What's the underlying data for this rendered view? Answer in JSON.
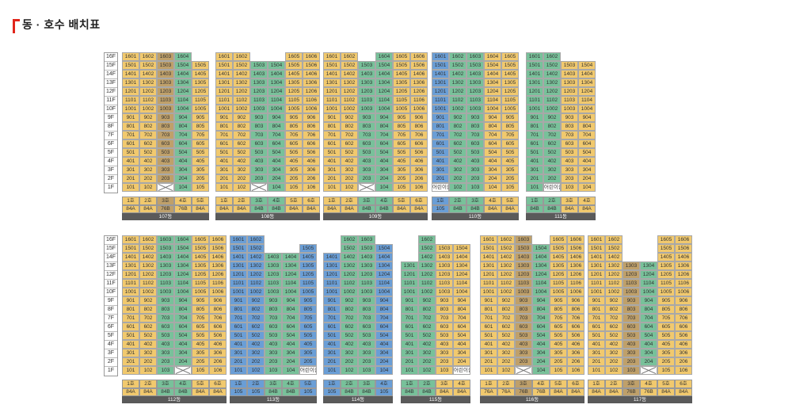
{
  "header": {
    "title": "동 · 호수 배치표"
  },
  "floors": [
    "16F",
    "15F",
    "14F",
    "13F",
    "12F",
    "11F",
    "10F",
    "9F",
    "8F",
    "7F",
    "6F",
    "5F",
    "4F",
    "3F",
    "2F",
    "1F"
  ],
  "colors": {
    "yellow": "#f1c96e",
    "green": "#78c19a",
    "blue": "#6a9ed6",
    "khaki": "#bfa06a",
    "legend_bar": "#5a5a5a"
  },
  "special_cells": {
    "note_label": "어린이집",
    "note_label_alt": "어린이집"
  },
  "buildings": [
    {
      "name": "107동",
      "lines": [
        {
          "line": "1호",
          "type": "84A",
          "color": "y"
        },
        {
          "line": "2호",
          "type": "84A",
          "color": "y"
        },
        {
          "line": "3호",
          "type": "76B",
          "color": "k"
        },
        {
          "line": "4호",
          "type": "76B",
          "color": "y"
        },
        {
          "line": "5호",
          "type": "84A",
          "color": "y"
        }
      ]
    },
    {
      "name": "108동",
      "lines": [
        {
          "line": "1호",
          "type": "84A",
          "color": "y"
        },
        {
          "line": "2호",
          "type": "84A",
          "color": "y"
        },
        {
          "line": "3호",
          "type": "84B",
          "color": "g"
        },
        {
          "line": "4호",
          "type": "84B",
          "color": "g"
        },
        {
          "line": "5호",
          "type": "84A",
          "color": "y"
        },
        {
          "line": "6호",
          "type": "84A",
          "color": "y"
        }
      ]
    },
    {
      "name": "109동",
      "lines": [
        {
          "line": "1호",
          "type": "84A",
          "color": "y"
        },
        {
          "line": "2호",
          "type": "84A",
          "color": "y"
        },
        {
          "line": "3호",
          "type": "84B",
          "color": "g"
        },
        {
          "line": "4호",
          "type": "84B",
          "color": "g"
        },
        {
          "line": "5호",
          "type": "84A",
          "color": "y"
        },
        {
          "line": "6호",
          "type": "84A",
          "color": "y"
        }
      ]
    },
    {
      "name": "110동",
      "lines": [
        {
          "line": "1호",
          "type": "105",
          "color": "b"
        },
        {
          "line": "2호",
          "type": "84B",
          "color": "g"
        },
        {
          "line": "3호",
          "type": "84B",
          "color": "g"
        },
        {
          "line": "4호",
          "type": "84A",
          "color": "y"
        },
        {
          "line": "5호",
          "type": "84A",
          "color": "y"
        }
      ]
    },
    {
      "name": "111동",
      "lines": [
        {
          "line": "1호",
          "type": "84B",
          "color": "g"
        },
        {
          "line": "2호",
          "type": "84B",
          "color": "g"
        },
        {
          "line": "3호",
          "type": "84A",
          "color": "y"
        },
        {
          "line": "4호",
          "type": "84A",
          "color": "y"
        }
      ]
    },
    {
      "name": "112동",
      "lines": [
        {
          "line": "1호",
          "type": "84A",
          "color": "y"
        },
        {
          "line": "2호",
          "type": "84A",
          "color": "y"
        },
        {
          "line": "3호",
          "type": "84B",
          "color": "g"
        },
        {
          "line": "4호",
          "type": "84B",
          "color": "g"
        },
        {
          "line": "5호",
          "type": "84A",
          "color": "y"
        },
        {
          "line": "6호",
          "type": "84A",
          "color": "y"
        }
      ]
    },
    {
      "name": "113동",
      "lines": [
        {
          "line": "1호",
          "type": "105",
          "color": "b"
        },
        {
          "line": "2호",
          "type": "105",
          "color": "b"
        },
        {
          "line": "3호",
          "type": "84B",
          "color": "g"
        },
        {
          "line": "4호",
          "type": "84B",
          "color": "g"
        },
        {
          "line": "5호",
          "type": "105",
          "color": "b"
        }
      ]
    },
    {
      "name": "114동",
      "lines": [
        {
          "line": "1호",
          "type": "105",
          "color": "b"
        },
        {
          "line": "2호",
          "type": "84B",
          "color": "g"
        },
        {
          "line": "3호",
          "type": "84B",
          "color": "g"
        },
        {
          "line": "4호",
          "type": "105",
          "color": "b"
        }
      ]
    },
    {
      "name": "115동",
      "lines": [
        {
          "line": "1호",
          "type": "84B",
          "color": "g"
        },
        {
          "line": "2호",
          "type": "84B",
          "color": "g"
        },
        {
          "line": "3호",
          "type": "84A",
          "color": "y"
        },
        {
          "line": "4호",
          "type": "84A",
          "color": "y"
        }
      ]
    },
    {
      "name": "116동",
      "lines": [
        {
          "line": "1호",
          "type": "76A",
          "color": "y"
        },
        {
          "line": "2호",
          "type": "76A",
          "color": "y"
        },
        {
          "line": "3호",
          "type": "76B",
          "color": "k"
        },
        {
          "line": "4호",
          "type": "76B",
          "color": "y"
        },
        {
          "line": "5호",
          "type": "84A",
          "color": "y"
        },
        {
          "line": "6호",
          "type": "84A",
          "color": "y"
        }
      ]
    },
    {
      "name": "117동",
      "lines": [
        {
          "line": "1호",
          "type": "84A",
          "color": "y"
        },
        {
          "line": "2호",
          "type": "84A",
          "color": "y"
        },
        {
          "line": "3호",
          "type": "76B",
          "color": "k"
        },
        {
          "line": "4호",
          "type": "76B",
          "color": "y"
        },
        {
          "line": "5호",
          "type": "84A",
          "color": "y"
        },
        {
          "line": "6호",
          "type": "84A",
          "color": "y"
        }
      ]
    }
  ]
}
